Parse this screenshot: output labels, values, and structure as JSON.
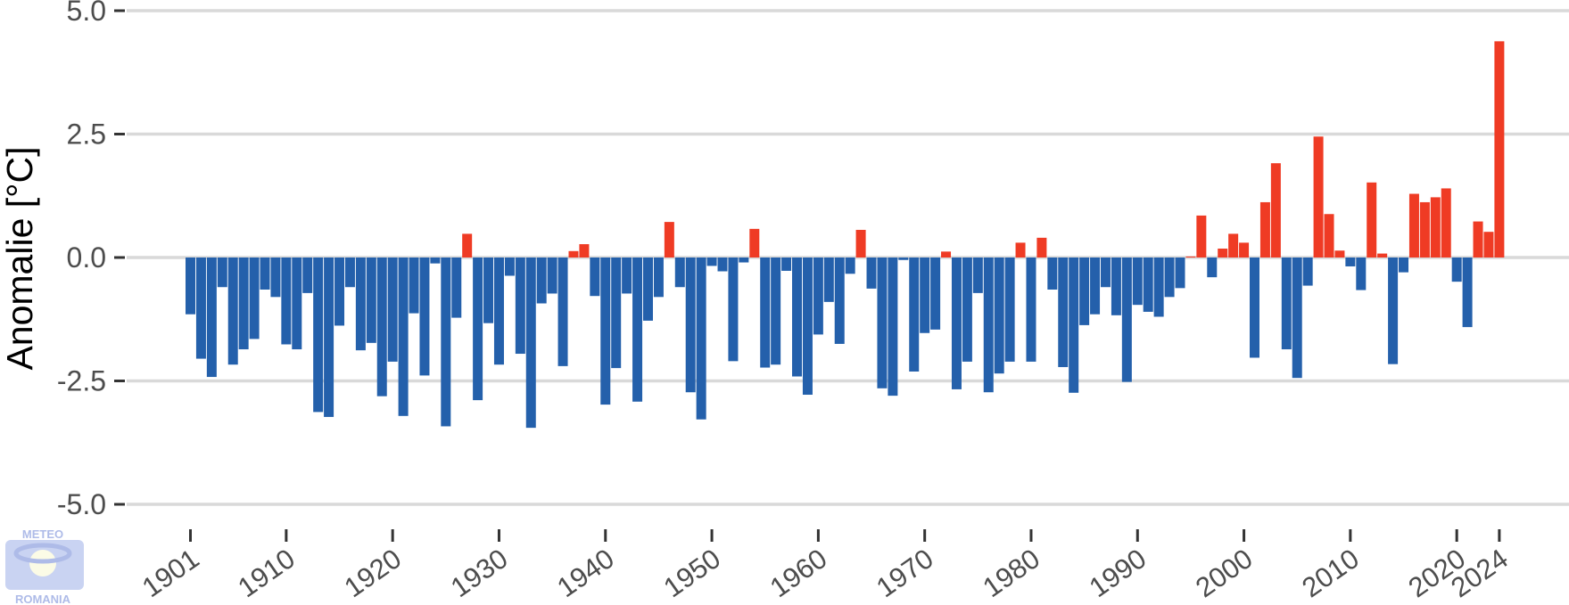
{
  "chart_data": {
    "type": "bar",
    "title": "",
    "xlabel": "",
    "ylabel": "Anomalie [°C]",
    "ylim": [
      -5.0,
      5.0
    ],
    "y_ticks": [
      "5.0",
      "2.5",
      "0.0",
      "-2.5",
      "-5.0"
    ],
    "x_ticks": [
      "1901",
      "1910",
      "1920",
      "1930",
      "1940",
      "1950",
      "1960",
      "1970",
      "1980",
      "1990",
      "2000",
      "2010",
      "2020",
      "2024"
    ],
    "grid": true,
    "positive_color": "#ef3b24",
    "negative_color": "#2460ab",
    "grid_color": "#d9d9d9",
    "x": [
      1901,
      1902,
      1903,
      1904,
      1905,
      1906,
      1907,
      1908,
      1909,
      1910,
      1911,
      1912,
      1913,
      1914,
      1915,
      1916,
      1917,
      1918,
      1919,
      1920,
      1921,
      1922,
      1923,
      1924,
      1925,
      1926,
      1927,
      1928,
      1929,
      1930,
      1931,
      1932,
      1933,
      1934,
      1935,
      1936,
      1937,
      1938,
      1939,
      1940,
      1941,
      1942,
      1943,
      1944,
      1945,
      1946,
      1947,
      1948,
      1949,
      1950,
      1951,
      1952,
      1953,
      1954,
      1955,
      1956,
      1957,
      1958,
      1959,
      1960,
      1961,
      1962,
      1963,
      1964,
      1965,
      1966,
      1967,
      1968,
      1969,
      1970,
      1971,
      1972,
      1973,
      1974,
      1975,
      1976,
      1977,
      1978,
      1979,
      1980,
      1981,
      1982,
      1983,
      1984,
      1985,
      1986,
      1987,
      1988,
      1989,
      1990,
      1991,
      1992,
      1993,
      1994,
      1995,
      1996,
      1997,
      1998,
      1999,
      2000,
      2001,
      2002,
      2003,
      2004,
      2005,
      2006,
      2007,
      2008,
      2009,
      2010,
      2011,
      2012,
      2013,
      2014,
      2015,
      2016,
      2017,
      2018,
      2019,
      2020,
      2021,
      2022,
      2023,
      2024
    ],
    "values": [
      -1.15,
      -2.05,
      -2.42,
      -0.6,
      -2.17,
      -1.86,
      -1.65,
      -0.65,
      -0.8,
      -1.76,
      -1.86,
      -0.72,
      -3.13,
      -3.23,
      -1.38,
      -0.6,
      -1.88,
      -1.73,
      -2.81,
      -2.11,
      -3.21,
      -1.13,
      -2.39,
      -0.12,
      -3.42,
      -1.22,
      0.48,
      -2.89,
      -1.33,
      -2.17,
      -0.37,
      -1.95,
      -3.45,
      -0.93,
      -0.73,
      -2.2,
      0.13,
      0.27,
      -0.78,
      -2.98,
      -2.24,
      -0.73,
      -2.92,
      -1.28,
      -0.8,
      0.72,
      -0.6,
      -2.73,
      -3.28,
      -0.17,
      -0.28,
      -2.1,
      -0.1,
      0.58,
      -2.23,
      -2.17,
      -0.27,
      -2.41,
      -2.78,
      -1.56,
      -0.9,
      -1.75,
      -0.33,
      0.56,
      -0.63,
      -2.65,
      -2.8,
      -0.05,
      -2.31,
      -1.53,
      -1.46,
      0.12,
      -2.67,
      -2.11,
      -0.72,
      -2.73,
      -2.35,
      -2.11,
      0.3,
      -2.11,
      0.4,
      -0.65,
      -2.22,
      -2.74,
      -1.37,
      -1.15,
      -0.6,
      -1.17,
      -2.52,
      -0.96,
      -1.1,
      -1.2,
      -0.8,
      -0.62,
      0.02,
      0.85,
      -0.4,
      0.18,
      0.48,
      0.3,
      -2.03,
      1.12,
      1.91,
      -1.86,
      -2.44,
      -0.57,
      2.45,
      0.88,
      0.14,
      -0.18,
      -0.66,
      1.52,
      0.08,
      -2.16,
      -0.3,
      1.29,
      1.12,
      1.22,
      1.4,
      -0.49,
      -1.41,
      0.73,
      0.52,
      4.38
    ]
  },
  "logo": {
    "line1": "METEO",
    "line2": "ROMANIA"
  }
}
